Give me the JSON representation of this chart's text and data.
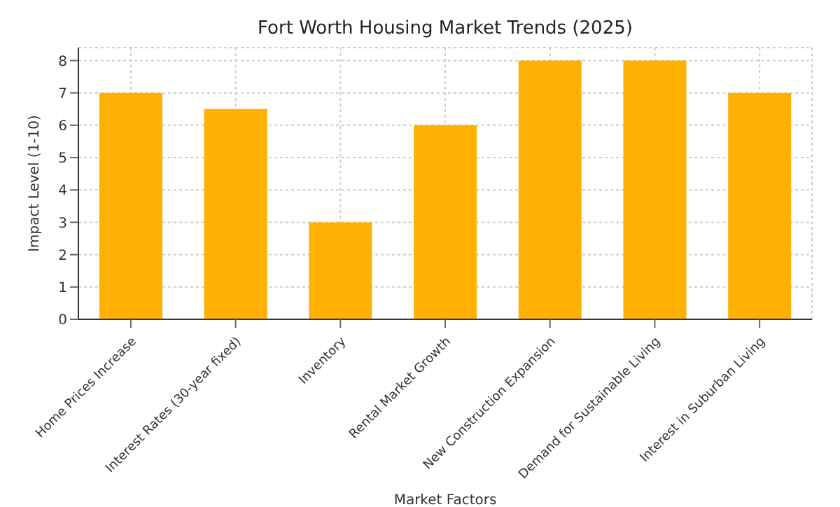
{
  "chart_data": {
    "type": "bar",
    "title": "Fort Worth Housing Market Trends (2025)",
    "xlabel": "Market Factors",
    "ylabel": "Impact Level (1-10)",
    "categories": [
      "Home Prices Increase",
      "Interest Rates (30-year fixed)",
      "Inventory",
      "Rental Market Growth",
      "New Construction Expansion",
      "Demand for Sustainable Living",
      "Interest in Suburban Living"
    ],
    "values": [
      7,
      6.5,
      3,
      6,
      8,
      8,
      7
    ],
    "color": "#ffb000",
    "ylim": [
      0,
      8.4
    ],
    "yticks": [
      0,
      1,
      2,
      3,
      4,
      5,
      6,
      7,
      8
    ],
    "grid": true
  }
}
